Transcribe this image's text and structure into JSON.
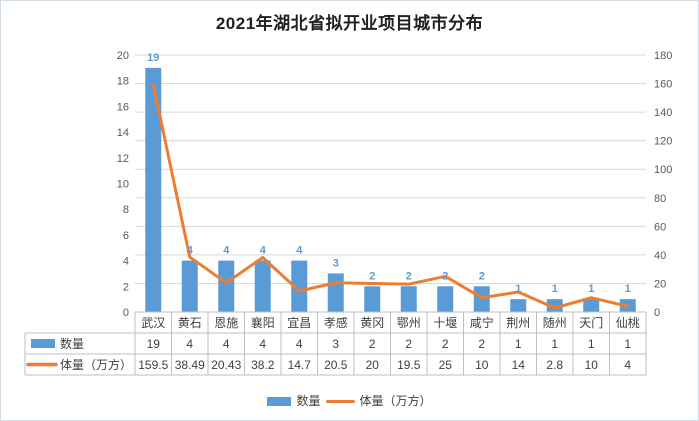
{
  "chart_data": {
    "type": "bar+line",
    "title": "2021年湖北省拟开业项目城市分布",
    "categories": [
      "武汉",
      "黄石",
      "恩施",
      "襄阳",
      "宜昌",
      "孝感",
      "黄冈",
      "鄂州",
      "十堰",
      "咸宁",
      "荆州",
      "随州",
      "天门",
      "仙桃"
    ],
    "series": [
      {
        "name": "数量",
        "type": "bar",
        "axis": "left",
        "color": "#5b9bd5",
        "values": [
          19,
          4,
          4,
          4,
          4,
          3,
          2,
          2,
          2,
          2,
          1,
          1,
          1,
          1
        ]
      },
      {
        "name": "体量（万方）",
        "type": "line",
        "axis": "right",
        "color": "#ed7d31",
        "values": [
          159.5,
          38.49,
          20.43,
          38.2,
          14.7,
          20.5,
          20,
          19.5,
          25,
          10,
          14,
          2.8,
          10,
          4
        ]
      }
    ],
    "left_axis": {
      "min": 0,
      "max": 20,
      "step": 2
    },
    "right_axis": {
      "min": 0,
      "max": 180,
      "step": 20
    },
    "grid": "horizontal",
    "legend_position": "bottom",
    "data_table_shown": true,
    "data_labels": "above bars"
  },
  "colors": {
    "bar": "#5b9bd5",
    "line": "#ed7d31",
    "gridline": "#d9d9d9",
    "table_border": "#bfbfbf",
    "axis_text": "#595959",
    "table_text": "#404040",
    "title_text": "#212121",
    "frame_border": "#d2dbe8"
  }
}
